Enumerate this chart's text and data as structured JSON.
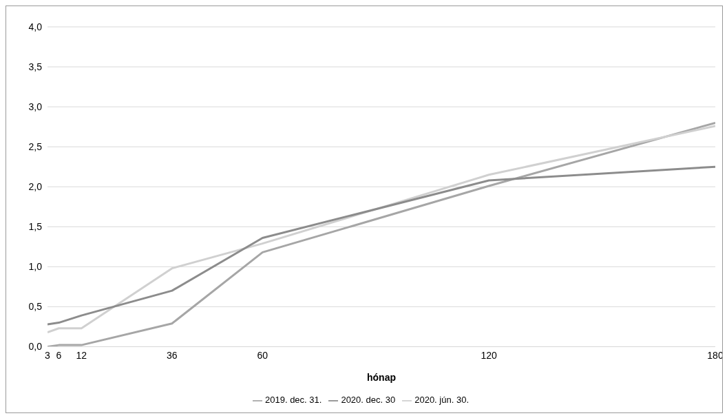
{
  "chart_data": {
    "type": "line",
    "xlabel": "hónap",
    "x": [
      3,
      6,
      12,
      36,
      60,
      120,
      180
    ],
    "xlim": [
      3,
      180
    ],
    "xticks": [
      3,
      6,
      12,
      36,
      60,
      120,
      180
    ],
    "ylim": [
      0,
      4
    ],
    "yticks": [
      {
        "value": 0,
        "label": "0,0"
      },
      {
        "value": 0.5,
        "label": "0,5"
      },
      {
        "value": 1,
        "label": "1,0"
      },
      {
        "value": 1.5,
        "label": "1,5"
      },
      {
        "value": 2,
        "label": "2,0"
      },
      {
        "value": 2.5,
        "label": "2,5"
      },
      {
        "value": 3,
        "label": "3,0"
      },
      {
        "value": 3.5,
        "label": "3,5"
      },
      {
        "value": 4,
        "label": "4,0"
      }
    ],
    "grid": "y",
    "legend": "bottom",
    "marker": "none",
    "line_style": "solid",
    "series": [
      {
        "name": "2019. dec. 31.",
        "color": "#a6a6a6",
        "values": [
          0.0,
          0.02,
          0.02,
          0.29,
          1.18,
          2.01,
          2.8
        ]
      },
      {
        "name": "2020. jún. 30.",
        "color": "#d0d0d0",
        "values": [
          0.18,
          0.23,
          0.23,
          0.98,
          1.29,
          2.15,
          2.76
        ]
      },
      {
        "name": "2020. dec. 30",
        "color": "#8c8c8c",
        "values": [
          0.28,
          0.3,
          0.39,
          0.7,
          1.36,
          2.08,
          2.25
        ]
      }
    ]
  }
}
